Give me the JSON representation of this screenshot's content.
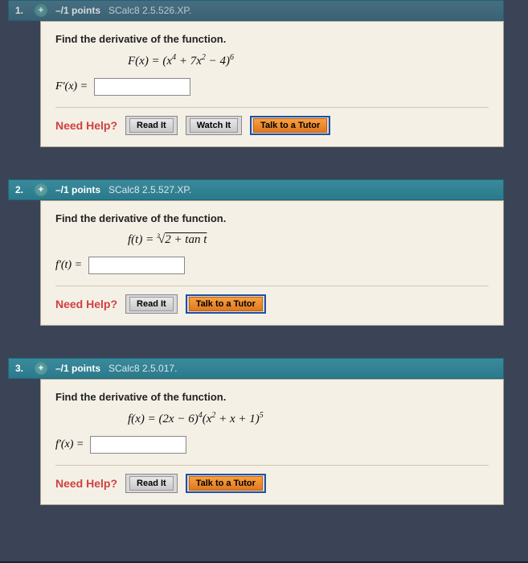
{
  "colors": {
    "page_bg": "#3a4456",
    "card_bg": "#f5f0e6",
    "header_bg": "#2a7a8c",
    "help_label": "#d04040",
    "btn_orange_top": "#f8a040",
    "btn_orange_bottom": "#e07820",
    "btn_gray_top": "#e8e8e8",
    "btn_gray_bottom": "#c8c8c8"
  },
  "problems": [
    {
      "number": "1.",
      "points": "–/1 points",
      "source": "SCalc8 2.5.526.XP.",
      "prompt": "Find the derivative of the function.",
      "formula_html": "F(x) = (x<sup>4</sup> + 7x<sup>2</sup> − 4)<sup>6</sup>",
      "answer_label": "F'(x) =",
      "help_label": "Need Help?",
      "buttons": [
        "Read It",
        "Watch It",
        "Talk to a Tutor"
      ]
    },
    {
      "number": "2.",
      "points": "–/1 points",
      "source": "SCalc8 2.5.527.XP.",
      "prompt": "Find the derivative of the function.",
      "formula_html": "f(t) = <span class=\"radidx\">3</span>√<span class=\"root\">2 + tan t</span>",
      "answer_label": "f'(t) =",
      "help_label": "Need Help?",
      "buttons": [
        "Read It",
        "Talk to a Tutor"
      ]
    },
    {
      "number": "3.",
      "points": "–/1 points",
      "source": "SCalc8 2.5.017.",
      "prompt": "Find the derivative of the function.",
      "formula_html": "f(x) = (2x − 6)<sup>4</sup>(x<sup>2</sup> + x + 1)<sup>5</sup>",
      "answer_label": "f'(x) =",
      "help_label": "Need Help?",
      "buttons": [
        "Read It",
        "Talk to a Tutor"
      ]
    }
  ]
}
